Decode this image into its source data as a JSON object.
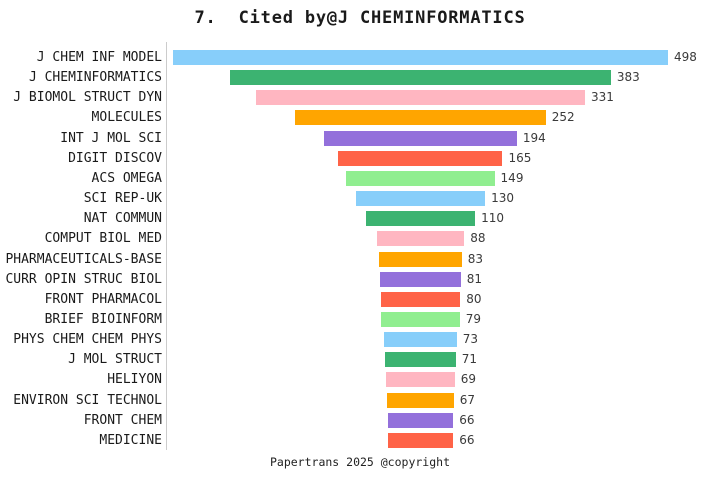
{
  "footer": "Papertrans 2025 @copyright",
  "chart_data": {
    "type": "bar",
    "variant": "horizontal-centered-funnel",
    "title": "7.  Cited by@J CHEMINFORMATICS",
    "categories": [
      "J CHEM INF MODEL",
      "J CHEMINFORMATICS",
      "J BIOMOL STRUCT DYN",
      "MOLECULES",
      "INT J MOL SCI",
      "DIGIT DISCOV",
      "ACS OMEGA",
      "SCI REP-UK",
      "NAT COMMUN",
      "COMPUT BIOL MED",
      "PHARMACEUTICALS-BASE",
      "CURR OPIN STRUC BIOL",
      "FRONT PHARMACOL",
      "BRIEF BIOINFORM",
      "PHYS CHEM CHEM PHYS",
      "J MOL STRUCT",
      "HELIYON",
      "ENVIRON SCI TECHNOL",
      "FRONT CHEM",
      "MEDICINE"
    ],
    "values": [
      498,
      383,
      331,
      252,
      194,
      165,
      149,
      130,
      110,
      88,
      83,
      81,
      80,
      79,
      73,
      71,
      69,
      67,
      66,
      66
    ],
    "value_labels_shown": true,
    "palette": [
      "#87CEFA",
      "#3CB371",
      "#FFB6C1",
      "#FFA500",
      "#9370DB",
      "#FF6347",
      "#90EE90"
    ],
    "axis_line_color": "#cccccc",
    "background_color": "#ffffff",
    "label_color": "#1a1a1a",
    "value_label_color": "#3a3a3a",
    "legend": false,
    "grid": false,
    "xlabel": "",
    "ylabel": ""
  }
}
